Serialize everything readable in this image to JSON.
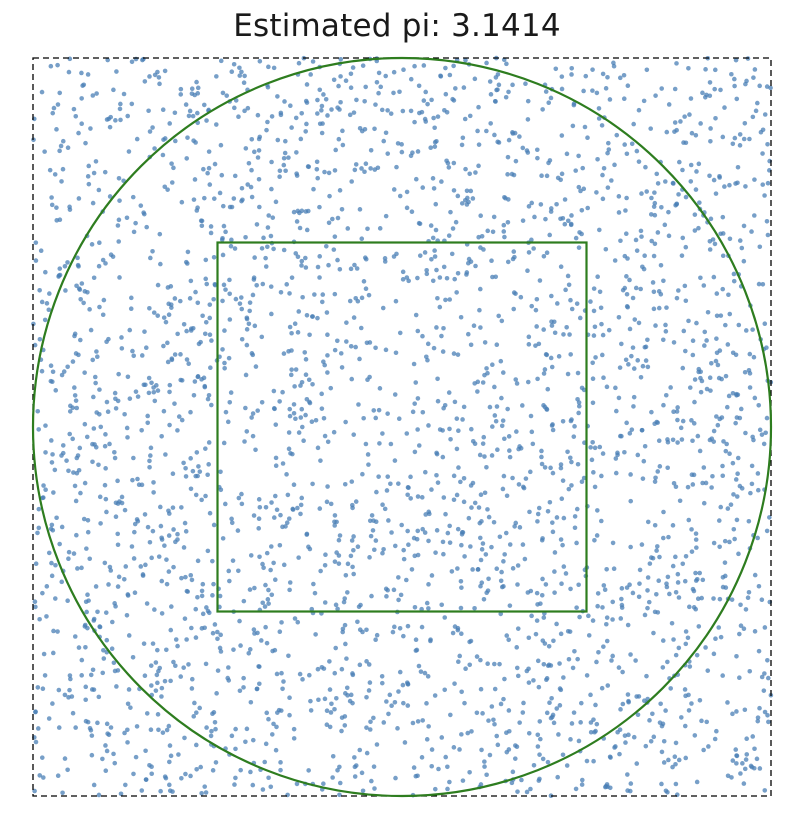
{
  "chart_data": {
    "type": "scatter",
    "title": "Estimated pi: 3.1414",
    "xlabel": "",
    "ylabel": "",
    "xlim": [
      -1,
      1
    ],
    "ylim": [
      -1,
      1
    ],
    "axes_visible": false,
    "grid": false,
    "legend": "none",
    "point_count_rendered": 3000,
    "point_color": "#4a7fb5",
    "point_opacity": 0.75,
    "outer_frame": {
      "shape": "square",
      "x": [
        -1,
        1
      ],
      "y": [
        -1,
        1
      ],
      "line_style": "dashed",
      "color": "#000000"
    },
    "circle": {
      "center": [
        0,
        0
      ],
      "radius": 1,
      "color": "#2e7d1f"
    },
    "inner_square": {
      "x": [
        -0.5,
        0.5
      ],
      "y": [
        -0.5,
        0.5
      ],
      "color": "#2e7d1f"
    },
    "sampling": "uniform random points in the square [-1, 1] × [-1, 1]"
  }
}
